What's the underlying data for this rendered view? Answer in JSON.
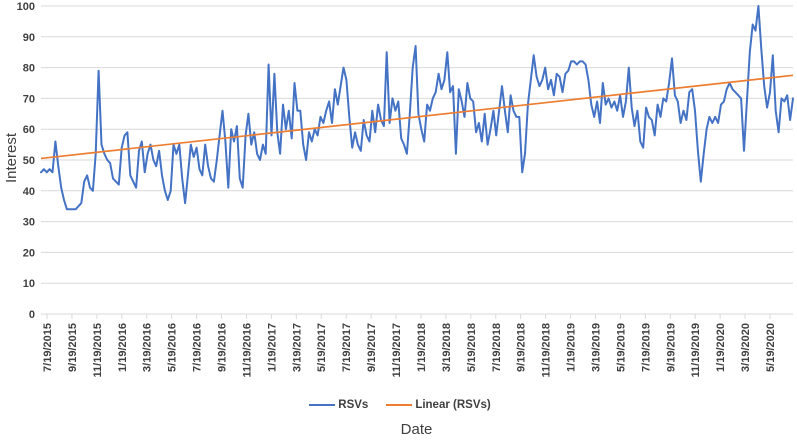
{
  "chart_data": {
    "type": "line",
    "title": "",
    "xlabel": "Date",
    "ylabel": "Interest",
    "ylim": [
      0,
      100
    ],
    "y_ticks": [
      0,
      10,
      20,
      30,
      40,
      50,
      60,
      70,
      80,
      90,
      100
    ],
    "x_tick_labels": [
      "7/19/2015",
      "9/19/2015",
      "11/19/2015",
      "1/19/2016",
      "3/19/2016",
      "5/19/2016",
      "7/19/2016",
      "9/19/2016",
      "11/19/2016",
      "1/19/2017",
      "3/19/2017",
      "5/19/2017",
      "7/19/2017",
      "9/19/2017",
      "11/19/2017",
      "1/19/2018",
      "3/19/2018",
      "5/19/2018",
      "7/19/2018",
      "9/19/2018",
      "11/19/2018",
      "1/19/2019",
      "3/19/2019",
      "5/19/2019",
      "7/19/2019",
      "9/19/2019",
      "11/19/2019",
      "1/19/2020",
      "3/19/2020",
      "5/19/2020"
    ],
    "grid": "horizontal-only",
    "legend_position": "bottom-center",
    "series": [
      {
        "name": "RSVs",
        "type": "line",
        "color": "#4472C4",
        "values": [
          46,
          47,
          46,
          47,
          46,
          56,
          48,
          41,
          37,
          34,
          34,
          34,
          34,
          35,
          36,
          43,
          45,
          41,
          40,
          52,
          79,
          55,
          52,
          50,
          49,
          44,
          43,
          42,
          54,
          58,
          59,
          45,
          43,
          41,
          53,
          56,
          46,
          52,
          55,
          50,
          48,
          53,
          45,
          40,
          37,
          40,
          55,
          52,
          55,
          44,
          36,
          45,
          55,
          51,
          54,
          47,
          45,
          55,
          48,
          44,
          43,
          50,
          58,
          66,
          56,
          41,
          60,
          56,
          61,
          44,
          41,
          58,
          65,
          55,
          59,
          52,
          50,
          55,
          52,
          81,
          58,
          78,
          59,
          52,
          68,
          60,
          66,
          57,
          75,
          66,
          66,
          55,
          50,
          59,
          56,
          60,
          58,
          64,
          62,
          66,
          69,
          62,
          73,
          68,
          74,
          80,
          76,
          64,
          54,
          59,
          55,
          53,
          63,
          58,
          56,
          66,
          59,
          68,
          63,
          61,
          85,
          62,
          70,
          66,
          69,
          57,
          55,
          52,
          65,
          80,
          87,
          65,
          60,
          56,
          68,
          66,
          70,
          72,
          78,
          73,
          76,
          85,
          72,
          74,
          52,
          73,
          69,
          64,
          75,
          70,
          69,
          59,
          62,
          56,
          65,
          55,
          60,
          66,
          58,
          66,
          74,
          66,
          59,
          71,
          66,
          64,
          64,
          46,
          52,
          68,
          76,
          84,
          77,
          74,
          76,
          80,
          73,
          76,
          71,
          78,
          77,
          72,
          78,
          79,
          82,
          82,
          81,
          82,
          82,
          81,
          76,
          68,
          64,
          69,
          62,
          75,
          68,
          70,
          67,
          69,
          66,
          71,
          64,
          69,
          80,
          67,
          61,
          66,
          56,
          54,
          67,
          64,
          63,
          58,
          68,
          64,
          70,
          69,
          75,
          83,
          71,
          69,
          62,
          66,
          63,
          72,
          73,
          66,
          53,
          43,
          52,
          60,
          64,
          62,
          64,
          62,
          68,
          69,
          73,
          75,
          73,
          72,
          71,
          70,
          53,
          69,
          85,
          94,
          92,
          100,
          86,
          74,
          67,
          72,
          84,
          66,
          59,
          70,
          69,
          71,
          63,
          70
        ]
      },
      {
        "name": "Linear (RSVs)",
        "type": "linear-trendline",
        "color": "#ED7D31",
        "start": 50.5,
        "end": 77.5
      }
    ]
  },
  "colors": {
    "gridline": "#D9D9D9",
    "axis_line": "#D9D9D9",
    "tick_text": "#3F3F3F",
    "title_text": "#3F3F3F",
    "background": "#FFFFFF"
  }
}
